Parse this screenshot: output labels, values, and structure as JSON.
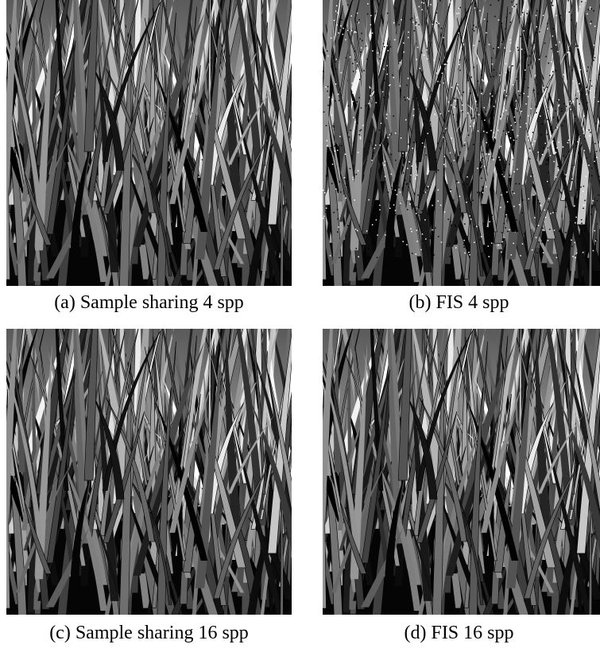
{
  "panels": [
    {
      "caption": "(a) Sample sharing 4 spp"
    },
    {
      "caption": "(b) FIS 4 spp"
    },
    {
      "caption": "(c) Sample sharing 16 spp"
    },
    {
      "caption": "(d) FIS 16 spp"
    }
  ]
}
